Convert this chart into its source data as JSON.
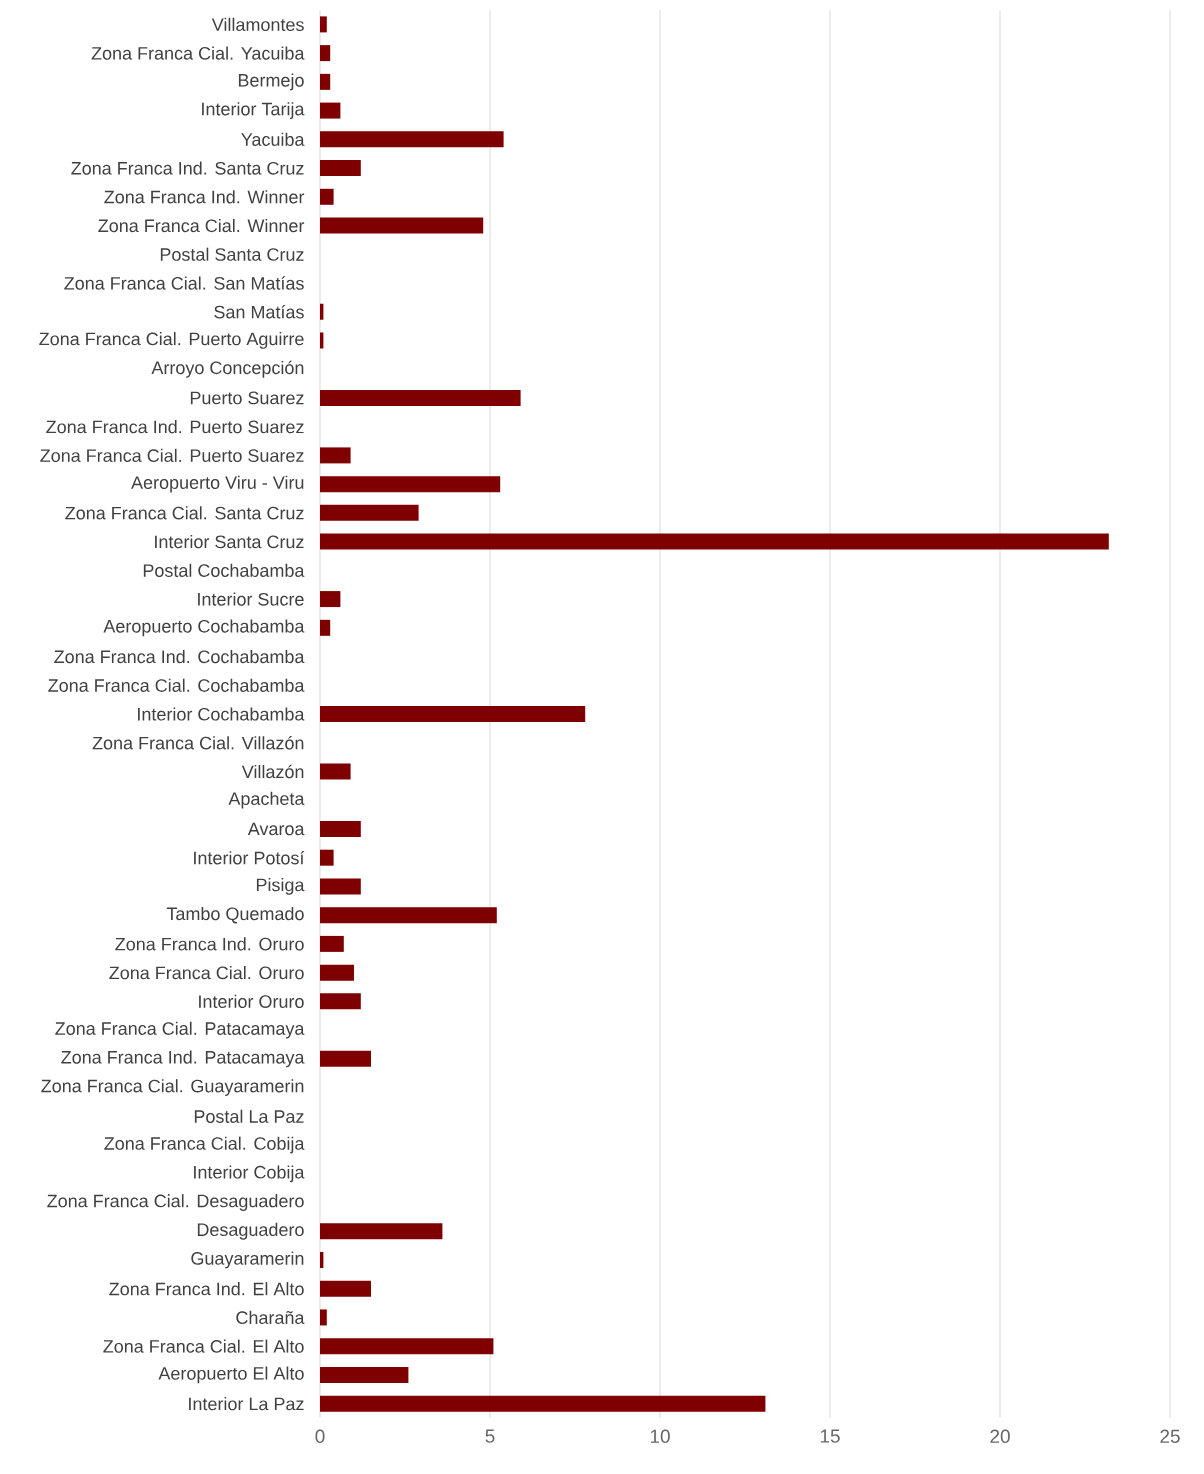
{
  "chart_data": {
    "type": "bar",
    "orientation": "horizontal",
    "color": "#7f0000",
    "grid": "x",
    "categories": [
      "Villamontes",
      "Zona Franca Cial. Yacuiba",
      "Bermejo",
      "Interior Tarija",
      "Yacuiba",
      "Zona Franca Ind. Santa Cruz",
      "Zona Franca Ind. Winner",
      "Zona Franca Cial. Winner",
      "Postal Santa Cruz",
      "Zona Franca Cial. San Matías",
      "San Matías",
      "Zona Franca Cial. Puerto Aguirre",
      "Arroyo Concepción",
      "Puerto Suarez",
      "Zona Franca Ind. Puerto Suarez",
      "Zona Franca Cial. Puerto Suarez",
      "Aeropuerto Viru - Viru",
      "Zona Franca Cial. Santa Cruz",
      "Interior Santa Cruz",
      "Postal Cochabamba",
      "Interior Sucre",
      "Aeropuerto Cochabamba",
      "Zona Franca Ind. Cochabamba",
      "Zona Franca Cial. Cochabamba",
      "Interior Cochabamba",
      "Zona Franca Cial. Villazón",
      "Villazón",
      "Apacheta",
      "Avaroa",
      "Interior Potosí",
      "Pisiga",
      "Tambo Quemado",
      "Zona Franca Ind. Oruro",
      "Zona Franca Cial. Oruro",
      "Interior Oruro",
      "Zona Franca Cial. Patacamaya",
      "Zona Franca Ind. Patacamaya",
      "Zona Franca Cial. Guayaramerin",
      "Postal La Paz",
      "Zona Franca Cial. Cobija",
      "Interior Cobija",
      "Zona Franca Cial. Desaguadero",
      "Desaguadero",
      "Guayaramerin",
      "Zona Franca Ind. El Alto",
      "Charaña",
      "Zona Franca Cial. El Alto",
      "Aeropuerto El Alto",
      "Interior La Paz"
    ],
    "values": [
      0.2,
      0.3,
      0.3,
      0.6,
      5.4,
      1.2,
      0.4,
      4.8,
      0,
      0,
      0.1,
      0.1,
      0,
      5.9,
      0,
      0.9,
      5.3,
      2.9,
      23.2,
      0,
      0.6,
      0.3,
      0,
      0,
      7.8,
      0,
      0.9,
      0,
      1.2,
      0.4,
      1.2,
      5.2,
      0.7,
      1.0,
      1.2,
      0,
      1.5,
      0,
      0,
      0,
      0,
      0,
      3.6,
      0.1,
      1.5,
      0.2,
      5.1,
      2.6,
      13.1
    ],
    "xlim": [
      0,
      25
    ],
    "xticks": [
      0,
      5,
      10,
      15,
      20,
      25
    ]
  }
}
